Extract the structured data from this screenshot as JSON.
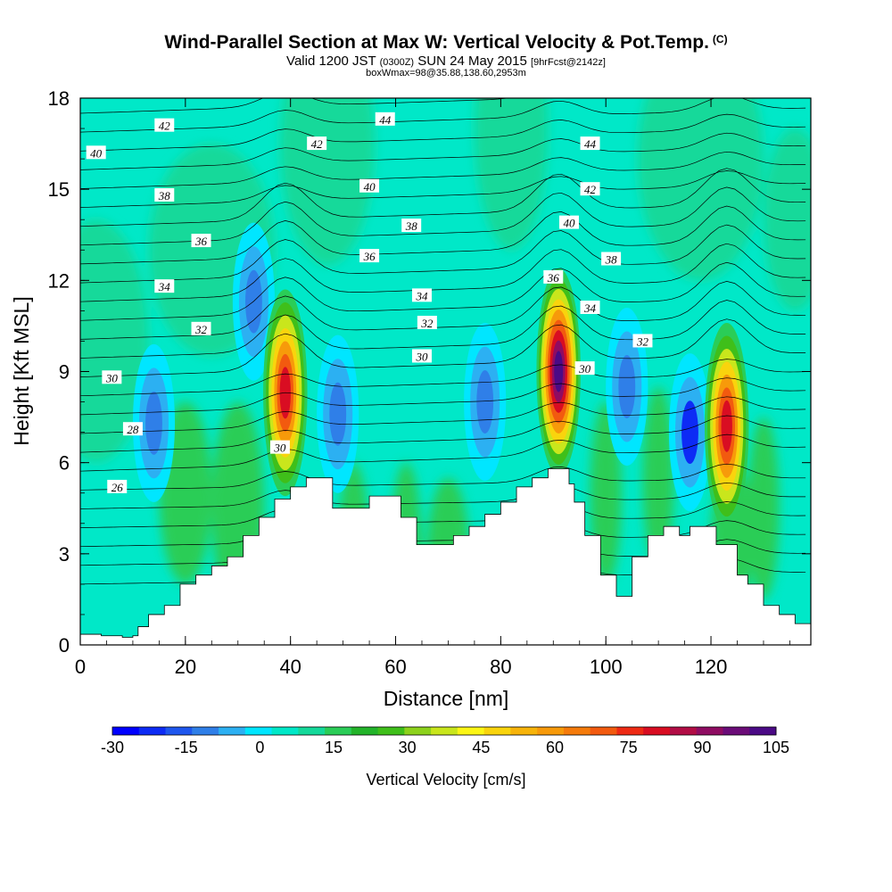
{
  "header": {
    "title": "Wind-Parallel Section at Max W: Vertical Velocity & Pot.Temp.",
    "title_mark": "(C)",
    "subtitle_a": "Valid 1200 JST",
    "subtitle_b": "(0300Z)",
    "subtitle_c": "SUN 24 May 2015",
    "subtitle_d": "[9hrFcst@2142z]",
    "subtitle2": "boxWmax=98@35.88,138.60,2953m"
  },
  "chart_data": {
    "type": "heatmap",
    "xlabel": "Distance [nm]",
    "ylabel": "Height [Kft MSL]",
    "xlim": [
      0,
      139
    ],
    "ylim": [
      0,
      18
    ],
    "xticks": [
      0,
      20,
      40,
      60,
      80,
      100,
      120
    ],
    "yticks": [
      0,
      3,
      6,
      9,
      12,
      15,
      18
    ],
    "colorbar": {
      "label": "Vertical Velocity [cm/s]",
      "ticks": [
        -30,
        -15,
        0,
        15,
        30,
        45,
        60,
        75,
        90,
        105
      ],
      "min": -30,
      "max": 105,
      "step": 5,
      "colors": [
        "#0000ff",
        "#0d2bf5",
        "#1e56ee",
        "#2f7fe8",
        "#2cb0f2",
        "#00e6ff",
        "#00e8c8",
        "#14d99a",
        "#2acd57",
        "#23b42a",
        "#3fbf1a",
        "#8dd21c",
        "#c9e61c",
        "#fcf615",
        "#f9d40d",
        "#f7b40a",
        "#f79a0a",
        "#f57b0b",
        "#f25a0f",
        "#ee2a14",
        "#d90d22",
        "#b20d45",
        "#8f0c62",
        "#6b0c78",
        "#4b0a86"
      ]
    },
    "terrain_profile": [
      [
        0,
        0.35
      ],
      [
        4,
        0.35
      ],
      [
        4,
        0.3
      ],
      [
        8,
        0.3
      ],
      [
        8,
        0.25
      ],
      [
        10,
        0.25
      ],
      [
        10,
        0.3
      ],
      [
        11,
        0.3
      ],
      [
        11,
        0.6
      ],
      [
        13,
        0.6
      ],
      [
        13,
        1.0
      ],
      [
        16,
        1.0
      ],
      [
        16,
        1.3
      ],
      [
        19,
        1.3
      ],
      [
        19,
        2.0
      ],
      [
        22,
        2.0
      ],
      [
        22,
        2.3
      ],
      [
        25,
        2.3
      ],
      [
        25,
        2.6
      ],
      [
        28,
        2.6
      ],
      [
        28,
        2.9
      ],
      [
        31,
        2.9
      ],
      [
        31,
        3.6
      ],
      [
        34,
        3.6
      ],
      [
        34,
        4.2
      ],
      [
        37,
        4.2
      ],
      [
        37,
        4.8
      ],
      [
        40,
        4.8
      ],
      [
        40,
        5.2
      ],
      [
        43,
        5.2
      ],
      [
        43,
        5.5
      ],
      [
        48,
        5.5
      ],
      [
        48,
        4.5
      ],
      [
        55,
        4.5
      ],
      [
        55,
        4.9
      ],
      [
        61,
        4.9
      ],
      [
        61,
        4.2
      ],
      [
        64,
        4.2
      ],
      [
        64,
        3.3
      ],
      [
        71,
        3.3
      ],
      [
        71,
        3.6
      ],
      [
        74,
        3.6
      ],
      [
        74,
        3.9
      ],
      [
        77,
        3.9
      ],
      [
        77,
        4.3
      ],
      [
        80,
        4.3
      ],
      [
        80,
        4.7
      ],
      [
        83,
        4.7
      ],
      [
        83,
        5.2
      ],
      [
        86,
        5.2
      ],
      [
        86,
        5.5
      ],
      [
        89,
        5.5
      ],
      [
        89,
        5.8
      ],
      [
        93,
        5.8
      ],
      [
        93,
        5.3
      ],
      [
        94,
        5.3
      ],
      [
        94,
        4.7
      ],
      [
        96,
        4.7
      ],
      [
        96,
        3.6
      ],
      [
        99,
        3.6
      ],
      [
        99,
        2.3
      ],
      [
        102,
        2.3
      ],
      [
        102,
        1.6
      ],
      [
        105,
        1.6
      ],
      [
        105,
        2.9
      ],
      [
        108,
        2.9
      ],
      [
        108,
        3.6
      ],
      [
        111,
        3.6
      ],
      [
        111,
        3.9
      ],
      [
        114,
        3.9
      ],
      [
        114,
        3.6
      ],
      [
        116,
        3.6
      ],
      [
        116,
        3.9
      ],
      [
        121,
        3.9
      ],
      [
        121,
        3.3
      ],
      [
        125,
        3.3
      ],
      [
        125,
        2.3
      ],
      [
        127,
        2.3
      ],
      [
        127,
        2.0
      ],
      [
        130,
        2.0
      ],
      [
        130,
        1.3
      ],
      [
        133,
        1.3
      ],
      [
        133,
        1.0
      ],
      [
        136,
        1.0
      ],
      [
        136,
        0.7
      ],
      [
        139,
        0.7
      ]
    ],
    "updraft_cores": [
      {
        "x": 39,
        "y": 8.3,
        "peak_w": 75
      },
      {
        "x": 91,
        "y": 9.0,
        "peak_w": 98
      },
      {
        "x": 123,
        "y": 7.2,
        "peak_w": 70
      }
    ],
    "downdraft_cores": [
      {
        "x": 49,
        "y": 7.6,
        "min_w": -12
      },
      {
        "x": 77,
        "y": 8.0,
        "min_w": -14
      },
      {
        "x": 116,
        "y": 7.0,
        "min_w": -22
      },
      {
        "x": 104,
        "y": 8.5,
        "min_w": -15
      },
      {
        "x": 14,
        "y": 7.3,
        "min_w": -15
      },
      {
        "x": 33,
        "y": 11.3,
        "min_w": -15
      }
    ],
    "theta_contour_labels": [
      {
        "value": "42",
        "x": 16,
        "y": 17.1
      },
      {
        "value": "44",
        "x": 58,
        "y": 17.3
      },
      {
        "value": "40",
        "x": 3,
        "y": 16.2
      },
      {
        "value": "42",
        "x": 45,
        "y": 16.5
      },
      {
        "value": "44",
        "x": 97,
        "y": 16.5
      },
      {
        "value": "38",
        "x": 16,
        "y": 14.8
      },
      {
        "value": "40",
        "x": 55,
        "y": 15.1
      },
      {
        "value": "42",
        "x": 97,
        "y": 15.0
      },
      {
        "value": "36",
        "x": 23,
        "y": 13.3
      },
      {
        "value": "38",
        "x": 63,
        "y": 13.8
      },
      {
        "value": "40",
        "x": 93,
        "y": 13.9
      },
      {
        "value": "36",
        "x": 55,
        "y": 12.8
      },
      {
        "value": "38",
        "x": 101,
        "y": 12.7
      },
      {
        "value": "34",
        "x": 16,
        "y": 11.8
      },
      {
        "value": "36",
        "x": 90,
        "y": 12.1
      },
      {
        "value": "34",
        "x": 65,
        "y": 11.5
      },
      {
        "value": "34",
        "x": 97,
        "y": 11.1
      },
      {
        "value": "32",
        "x": 23,
        "y": 10.4
      },
      {
        "value": "32",
        "x": 66,
        "y": 10.6
      },
      {
        "value": "32",
        "x": 107,
        "y": 10.0
      },
      {
        "value": "30",
        "x": 6,
        "y": 8.8
      },
      {
        "value": "30",
        "x": 65,
        "y": 9.5
      },
      {
        "value": "30",
        "x": 96,
        "y": 9.1
      },
      {
        "value": "28",
        "x": 10,
        "y": 7.1
      },
      {
        "value": "30",
        "x": 38,
        "y": 6.5
      },
      {
        "value": "26",
        "x": 7,
        "y": 5.2
      }
    ]
  }
}
